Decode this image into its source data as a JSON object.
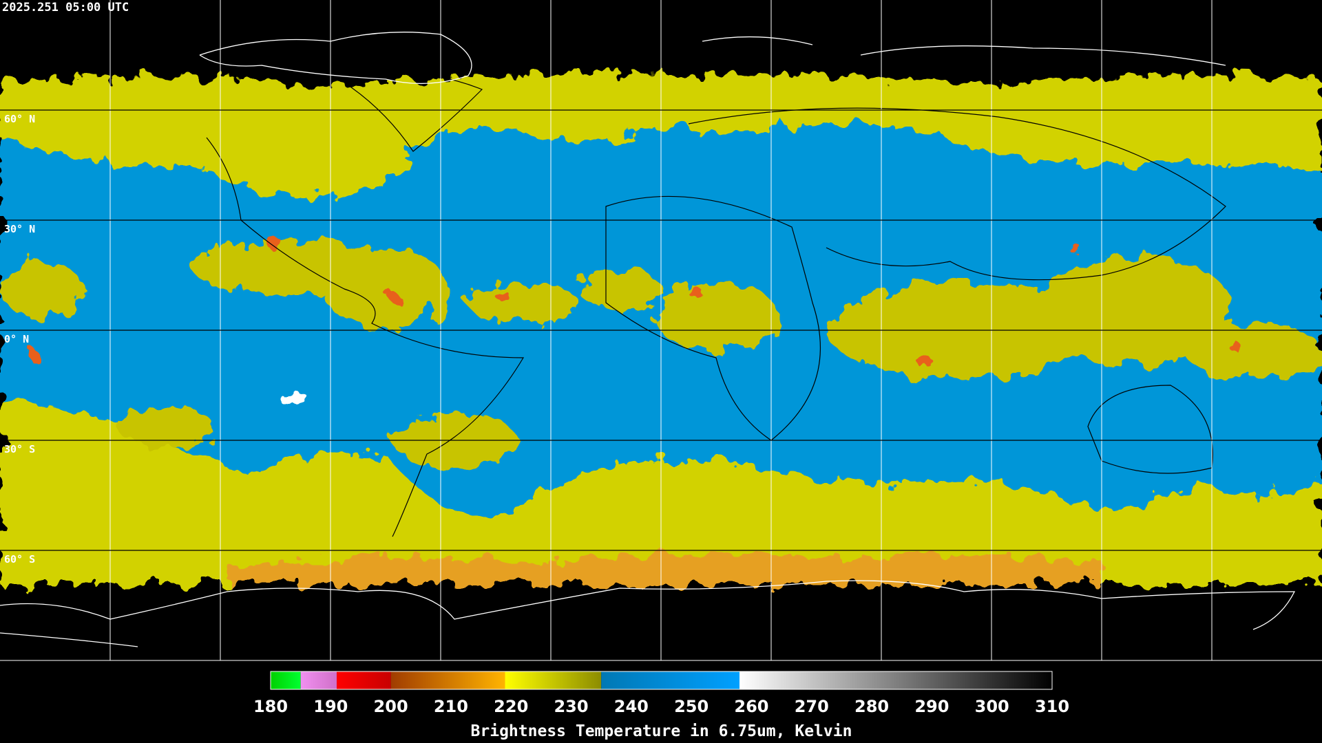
{
  "header": {
    "timestamp": "2025.251 05:00 UTC"
  },
  "latitude_labels": [
    "60° N",
    "30° N",
    "0° N",
    "30° S",
    "60° S"
  ],
  "colorbar": {
    "title": "Brightness Temperature in 6.75um, Kelvin",
    "ticks": [
      180,
      190,
      200,
      210,
      220,
      230,
      240,
      250,
      260,
      270,
      280,
      290,
      300,
      310
    ],
    "segments": [
      {
        "from": 180,
        "to": 185,
        "colors": [
          "#00d000",
          "#00ff30"
        ]
      },
      {
        "from": 185,
        "to": 191,
        "colors": [
          "#f090f0",
          "#d070c8"
        ]
      },
      {
        "from": 191,
        "to": 200,
        "colors": [
          "#ff0000",
          "#c80000"
        ]
      },
      {
        "from": 200,
        "to": 219,
        "colors": [
          "#a03c00",
          "#ffb400"
        ]
      },
      {
        "from": 219,
        "to": 235,
        "colors": [
          "#ffff00",
          "#8c8c00"
        ]
      },
      {
        "from": 235,
        "to": 258,
        "colors": [
          "#0078b4",
          "#00a0ff"
        ]
      },
      {
        "from": 258,
        "to": 310,
        "colors": [
          "#ffffff",
          "#000000"
        ]
      }
    ]
  }
}
